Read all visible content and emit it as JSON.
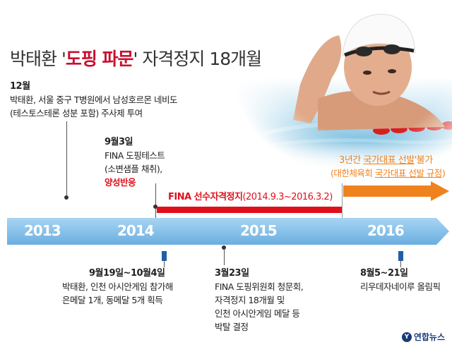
{
  "title": {
    "prefix": "박태환 '",
    "highlight": "도핑 파문",
    "suffix": "' 자격정지 18개월"
  },
  "events": {
    "dec": {
      "heading": "12월",
      "lines": [
        "박태환, 서울 중구 T병원에서 남성호르몬 네비도",
        "(테스토스테론 성분 포함) 주사제 투여"
      ]
    },
    "sep3": {
      "heading": "9월3일",
      "lines": [
        "FINA 도핑테스트",
        "(소변샘플 채취),"
      ],
      "result": "양성반응"
    },
    "asian_games": {
      "heading": "9월19일~10월4일",
      "lines": [
        "박태환, 인천 아시안게임 참가해",
        "은메달 1개, 동메달 5개 획득"
      ]
    },
    "mar23": {
      "heading": "3월23일",
      "lines": [
        "FINA 도핑위원회 청문회,",
        "자격정지 18개월 및",
        "인천 아시안게임 메달 등",
        "박탈 결정"
      ]
    },
    "rio": {
      "heading": "8월5~21일",
      "lines": [
        "리우데자네이루 올림픽"
      ]
    }
  },
  "suspension": {
    "label": "FINA 선수자격정지",
    "range": "(2014.9.3~2016.3.2)"
  },
  "national_team": {
    "line1_a": "3년간 ",
    "line1_b": "국가대표 선발",
    "line1_c": "'불가",
    "line2_a": "(대한체육회 ",
    "line2_b": "국가대표 선발 규정",
    "line2_c": ")"
  },
  "years": [
    "2013",
    "2014",
    "2015",
    "2016"
  ],
  "logo": {
    "text": "연합뉴스",
    "mark": "Y"
  },
  "colors": {
    "red": "#e0101b",
    "orange": "#f0821e",
    "timeline_blue": "#8ec3ec",
    "tick_blue": "#1e5fa8"
  }
}
